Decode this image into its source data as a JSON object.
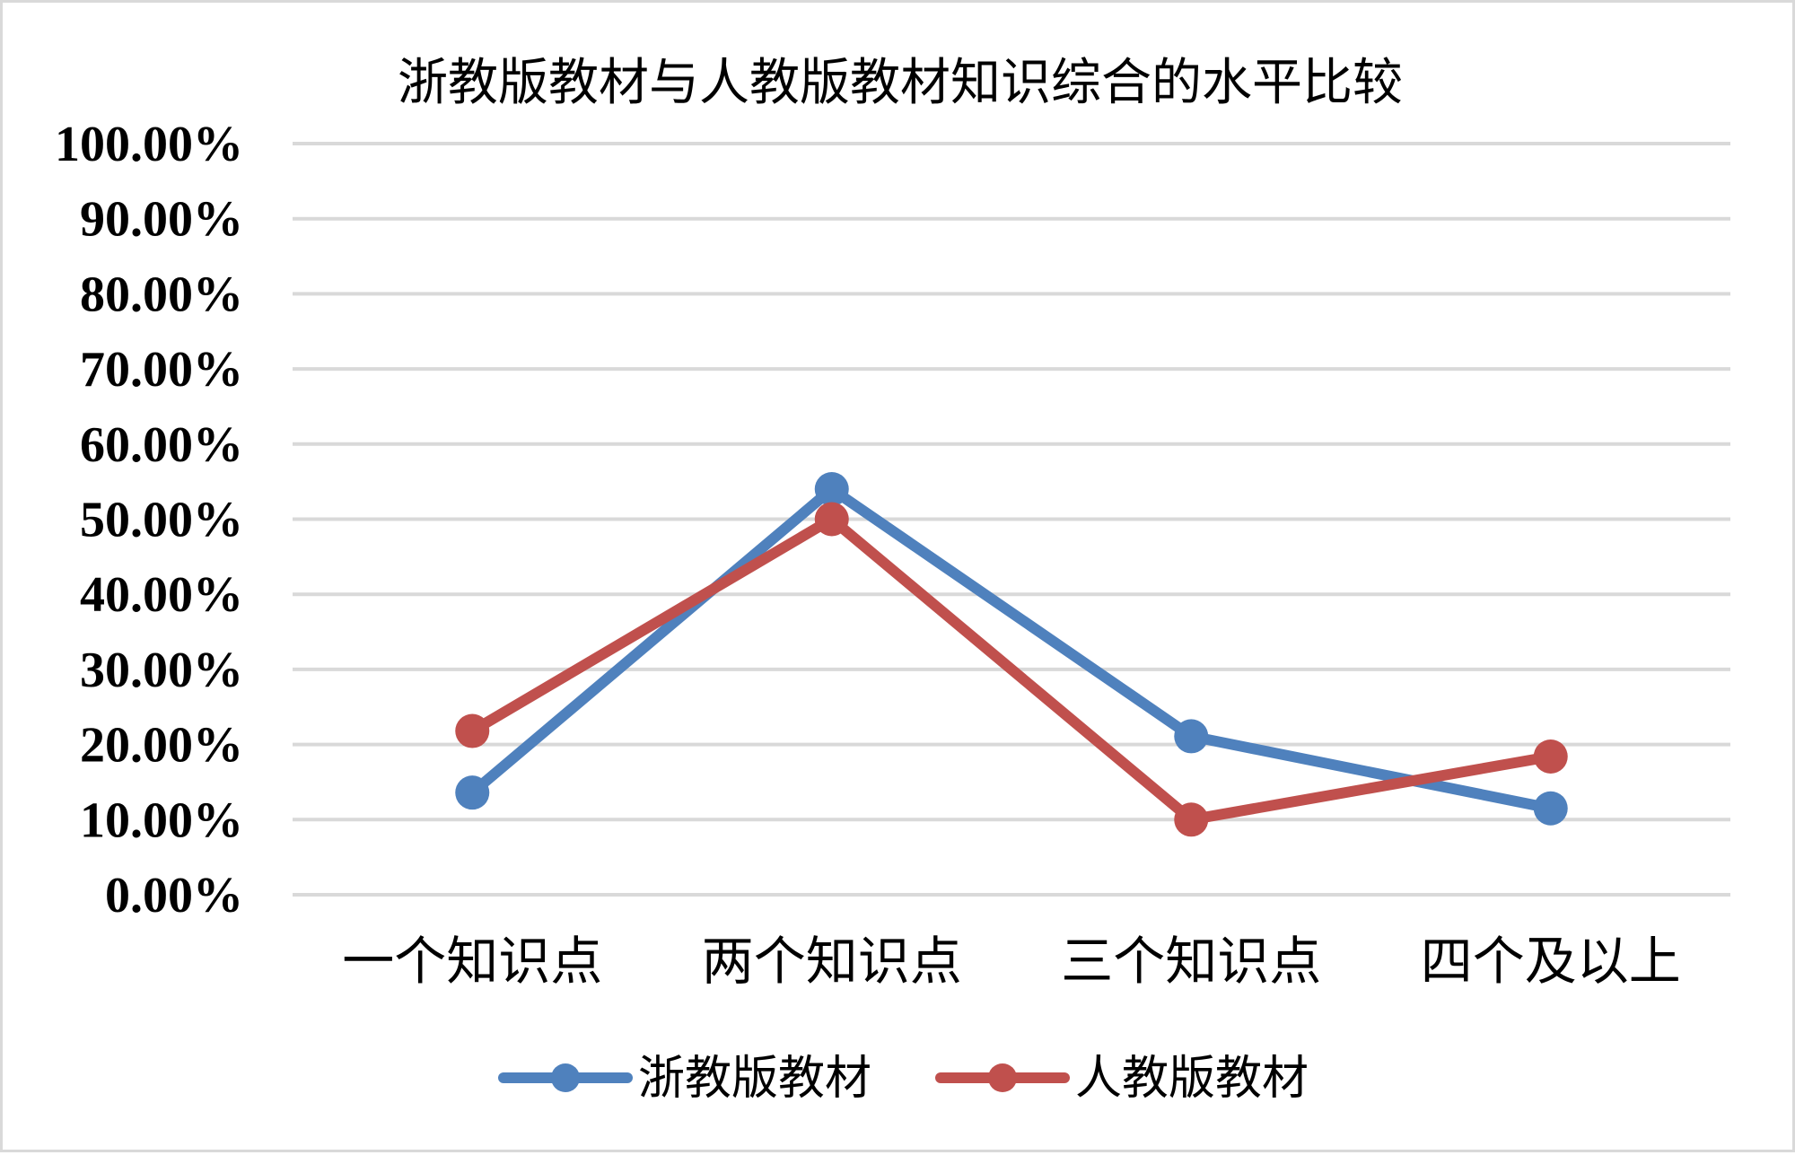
{
  "chart_data": {
    "type": "line",
    "title": "浙教版教材与人教版教材知识综合的水平比较",
    "xlabel": "",
    "ylabel": "",
    "categories": [
      "一个知识点",
      "两个知识点",
      "三个知识点",
      "四个及以上"
    ],
    "ylim": [
      0,
      1
    ],
    "y_ticks": [
      "0.00%",
      "10.00%",
      "20.00%",
      "30.00%",
      "40.00%",
      "50.00%",
      "60.00%",
      "70.00%",
      "80.00%",
      "90.00%",
      "100.00%"
    ],
    "grid": true,
    "legend_position": "bottom",
    "series": [
      {
        "name": "浙教版教材",
        "color": "#4f81bd",
        "values": [
          0.136,
          0.54,
          0.211,
          0.115
        ]
      },
      {
        "name": "人教版教材",
        "color": "#c0504d",
        "values": [
          0.218,
          0.5,
          0.1,
          0.184
        ]
      }
    ]
  }
}
